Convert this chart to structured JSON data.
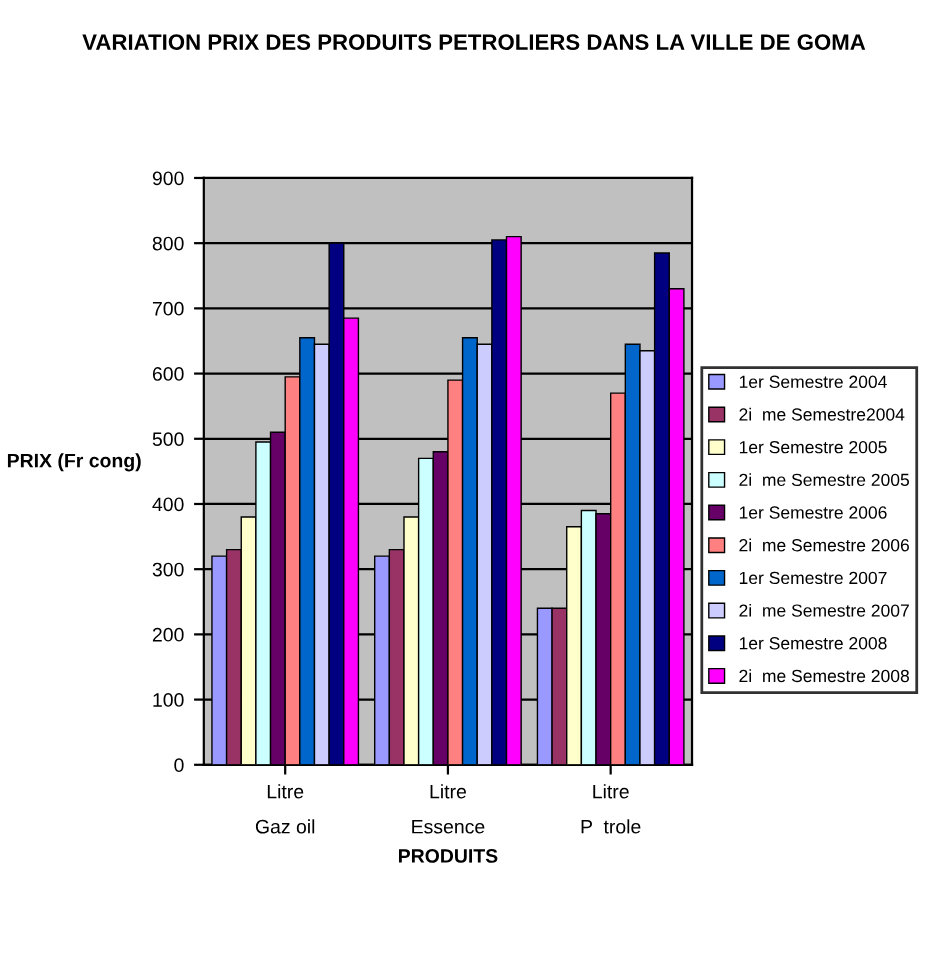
{
  "chart_data": {
    "type": "bar",
    "title": "VARIATION PRIX DES PRODUITS PETROLIERS DANS LA VILLE DE GOMA",
    "xlabel": "PRODUITS",
    "ylabel": "PRIX (Fr cong)",
    "categories": [
      "Litre\nGaz oil",
      "Litre\nEssence",
      "Litre\nP  trole"
    ],
    "series": [
      {
        "name": "1er Semestre 2004",
        "color": "#9999ff",
        "values": [
          320,
          320,
          240
        ]
      },
      {
        "name": "2i  me Semestre2004",
        "color": "#993366",
        "values": [
          330,
          330,
          240
        ]
      },
      {
        "name": "1er Semestre 2005",
        "color": "#ffffcc",
        "values": [
          380,
          380,
          365
        ]
      },
      {
        "name": "2i  me Semestre 2005",
        "color": "#ccffff",
        "values": [
          495,
          470,
          390
        ]
      },
      {
        "name": "1er Semestre 2006",
        "color": "#660066",
        "values": [
          510,
          480,
          385
        ]
      },
      {
        "name": "2i  me Semestre 2006",
        "color": "#ff8080",
        "values": [
          595,
          590,
          570
        ]
      },
      {
        "name": "1er Semestre 2007",
        "color": "#0066cc",
        "values": [
          655,
          655,
          645
        ]
      },
      {
        "name": "2i  me Semestre 2007",
        "color": "#ccccff",
        "values": [
          645,
          645,
          635
        ]
      },
      {
        "name": "1er Semestre 2008",
        "color": "#000080",
        "values": [
          800,
          805,
          785
        ]
      },
      {
        "name": "2i  me Semestre 2008",
        "color": "#ff00ff",
        "values": [
          685,
          810,
          730
        ]
      }
    ],
    "ylim": [
      0,
      900
    ],
    "yticks": [
      0,
      100,
      200,
      300,
      400,
      500,
      600,
      700,
      800,
      900
    ],
    "grid": "y",
    "legend": "right"
  }
}
